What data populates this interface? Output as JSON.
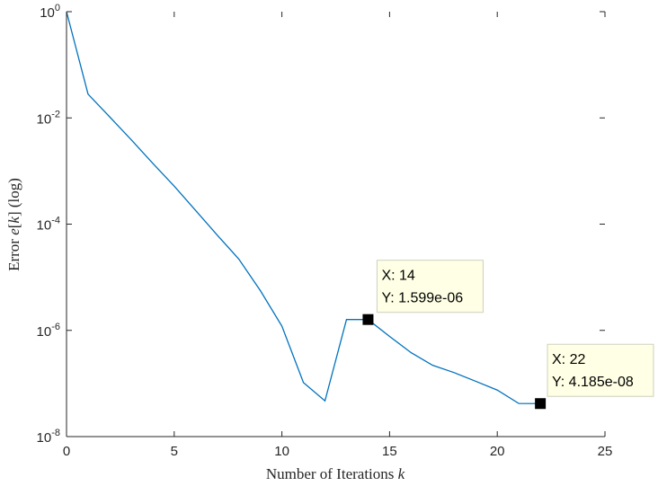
{
  "chart_data": {
    "type": "line",
    "xlabel": "Number of Iterations k",
    "ylabel": "Error e[k] (log)",
    "xlim": [
      0,
      25
    ],
    "ylim": [
      1e-08,
      1
    ],
    "yscale": "log",
    "xticks": [
      0,
      5,
      10,
      15,
      20,
      25
    ],
    "yticks": [
      {
        "value": 1,
        "base": "10",
        "exp": "0"
      },
      {
        "value": 0.01,
        "base": "10",
        "exp": "-2"
      },
      {
        "value": 0.0001,
        "base": "10",
        "exp": "-4"
      },
      {
        "value": 1e-06,
        "base": "10",
        "exp": "-6"
      },
      {
        "value": 1e-08,
        "base": "10",
        "exp": "-8"
      }
    ],
    "grid": false,
    "series": [
      {
        "color": "#0072BD",
        "x": [
          0,
          1,
          2,
          3,
          4,
          5,
          6,
          7,
          8,
          9,
          10,
          11,
          12,
          13,
          14,
          15,
          16,
          17,
          18,
          19,
          20,
          21,
          22
        ],
        "y": [
          1,
          0.028,
          0.0105,
          0.0039,
          0.0014,
          0.00052,
          0.00018,
          6.2e-05,
          2.2e-05,
          5.6e-06,
          1.2e-06,
          1.04e-07,
          4.7e-08,
          1.6e-06,
          1.599e-06,
          7.7e-07,
          3.8e-07,
          2.2e-07,
          1.6e-07,
          1.1e-07,
          7.5e-08,
          4.2e-08,
          4.185e-08
        ]
      }
    ],
    "datatips": [
      {
        "x": 14,
        "y": 1.599e-06,
        "label_x": "X: 14",
        "label_y": "Y: 1.599e-06"
      },
      {
        "x": 22,
        "y": 4.185e-08,
        "label_x": "X: 22",
        "label_y": "Y: 4.185e-08"
      }
    ]
  }
}
